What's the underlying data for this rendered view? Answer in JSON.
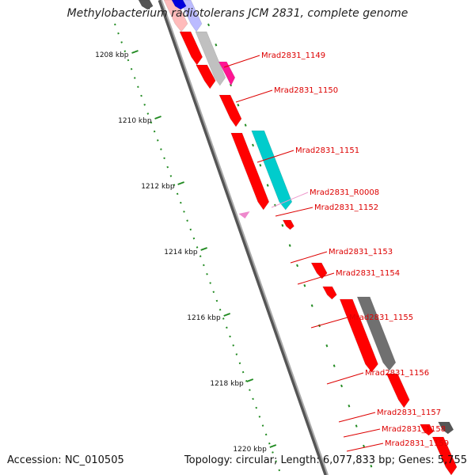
{
  "title": "Methylobacterium radiotolerans JCM 2831, complete genome",
  "footer": {
    "accession": "Accession: NC_010505",
    "summary": "Topology: circular; Length: 6,077,833 bp; Genes: 5,755"
  },
  "colors": {
    "cds_forward": "#ff0000",
    "cds_reverse": "#00cccc",
    "rna": "#ee88cc",
    "other_gray": "#707070",
    "backbone": "#888888",
    "tick": "#228b22",
    "label": "#dd0000"
  },
  "ticks": [
    {
      "label": "1208 kbp",
      "kbp": 1208
    },
    {
      "label": "1210 kbp",
      "kbp": 1210
    },
    {
      "label": "1212 kbp",
      "kbp": 1212
    },
    {
      "label": "1214 kbp",
      "kbp": 1214
    },
    {
      "label": "1216 kbp",
      "kbp": 1216
    },
    {
      "label": "1218 kbp",
      "kbp": 1218
    },
    {
      "label": "1220 kbp",
      "kbp": 1220
    }
  ],
  "labels": [
    {
      "text": "Mrad2831_1149",
      "color": "#dd0000"
    },
    {
      "text": "Mrad2831_1150",
      "color": "#dd0000"
    },
    {
      "text": "Mrad2831_1151",
      "color": "#dd0000"
    },
    {
      "text": "Mrad2831_R0008",
      "color": "#ee99cc"
    },
    {
      "text": "Mrad2831_1152",
      "color": "#dd0000"
    },
    {
      "text": "Mrad2831_1153",
      "color": "#dd0000"
    },
    {
      "text": "Mrad2831_1154",
      "color": "#dd0000"
    },
    {
      "text": "Mrad2831_1155",
      "color": "#dd0000"
    },
    {
      "text": "Mrad2831_1156",
      "color": "#dd0000"
    },
    {
      "text": "Mrad2831_1157",
      "color": "#dd0000"
    },
    {
      "text": "Mrad2831_1158",
      "color": "#dd0000"
    },
    {
      "text": "Mrad2831_1159",
      "color": "#dd0000"
    }
  ]
}
